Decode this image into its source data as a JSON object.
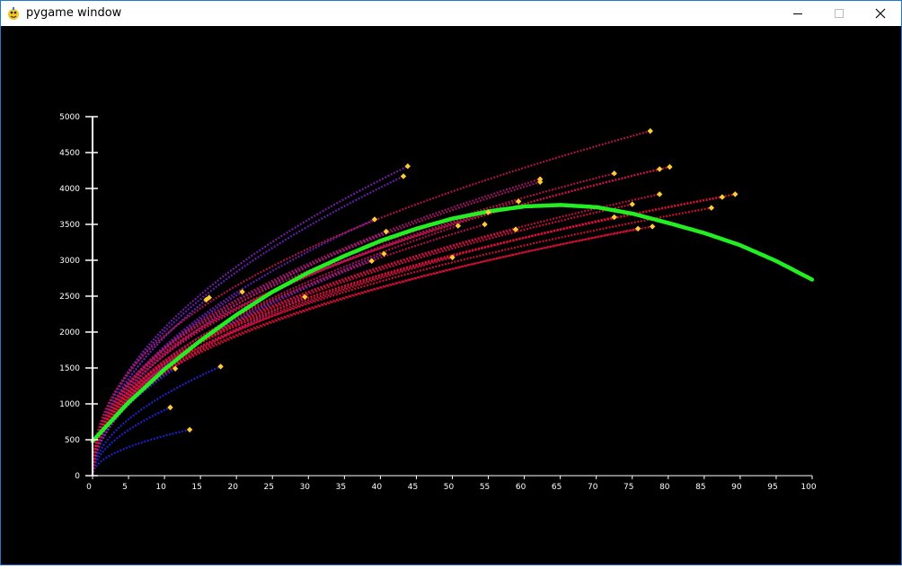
{
  "window": {
    "title": "pygame window",
    "icons": {
      "app": "pygame-snake-icon",
      "minimize": "minimize-icon",
      "maximize": "maximize-icon",
      "close": "close-icon"
    }
  },
  "colors": {
    "background": "#000000",
    "axis": "#ffffff",
    "best_fit": "#22ee22",
    "endpoint": "#ffcc33",
    "low_series": "#2222dd",
    "mid_series": "#8822aa",
    "high_series": "#dd1133"
  },
  "chart_data": {
    "type": "scatter",
    "title": "",
    "xlabel": "",
    "ylabel": "",
    "xlim": [
      0,
      100
    ],
    "ylim": [
      0,
      5000
    ],
    "x_ticks": [
      0,
      5,
      10,
      15,
      20,
      25,
      30,
      35,
      40,
      45,
      50,
      55,
      60,
      65,
      70,
      75,
      80,
      85,
      90,
      95,
      100
    ],
    "y_ticks": [
      0,
      500,
      1000,
      1500,
      2000,
      2500,
      3000,
      3500,
      4000,
      4500,
      5000
    ],
    "grid": false,
    "legend": "none",
    "best_fit": {
      "x": [
        0,
        5,
        10,
        15,
        20,
        25,
        30,
        35,
        40,
        45,
        50,
        55,
        60,
        65,
        70,
        75,
        80,
        85,
        90,
        95,
        100
      ],
      "y": [
        480,
        1020,
        1480,
        1880,
        2240,
        2560,
        2830,
        3060,
        3270,
        3440,
        3580,
        3680,
        3750,
        3770,
        3740,
        3650,
        3520,
        3380,
        3210,
        2990,
        2730
      ]
    },
    "trajectories": [
      {
        "end_x": 13.5,
        "end_y": 640,
        "power": 0.48,
        "color": "#2222dd"
      },
      {
        "end_x": 10.8,
        "end_y": 950,
        "power": 0.52,
        "color": "#2222dd"
      },
      {
        "end_x": 17.8,
        "end_y": 1520,
        "power": 0.52,
        "color": "#2a22d6"
      },
      {
        "end_x": 11.5,
        "end_y": 1490,
        "power": 0.5,
        "color": "#3a22c8"
      },
      {
        "end_x": 15.8,
        "end_y": 2450,
        "power": 0.52,
        "color": "#5a22b6"
      },
      {
        "end_x": 16.2,
        "end_y": 2480,
        "power": 0.52,
        "color": "#6622b0"
      },
      {
        "end_x": 20.8,
        "end_y": 2560,
        "power": 0.5,
        "color": "#7722a8"
      },
      {
        "end_x": 29.5,
        "end_y": 2490,
        "power": 0.52,
        "color": "#9922a0"
      },
      {
        "end_x": 38.8,
        "end_y": 2990,
        "power": 0.5,
        "color": "#8822aa"
      },
      {
        "end_x": 39.2,
        "end_y": 3570,
        "power": 0.5,
        "color": "#6622b6"
      },
      {
        "end_x": 40.5,
        "end_y": 3090,
        "power": 0.5,
        "color": "#8a22a6"
      },
      {
        "end_x": 40.8,
        "end_y": 3400,
        "power": 0.5,
        "color": "#9a2298"
      },
      {
        "end_x": 43.2,
        "end_y": 4170,
        "power": 0.5,
        "color": "#6a22bb"
      },
      {
        "end_x": 43.8,
        "end_y": 4310,
        "power": 0.5,
        "color": "#7a22b0"
      },
      {
        "end_x": 50.0,
        "end_y": 3040,
        "power": 0.45,
        "color": "#cc1144"
      },
      {
        "end_x": 50.8,
        "end_y": 3480,
        "power": 0.48,
        "color": "#bb1155"
      },
      {
        "end_x": 54.5,
        "end_y": 3500,
        "power": 0.46,
        "color": "#c0124f"
      },
      {
        "end_x": 55.0,
        "end_y": 3670,
        "power": 0.46,
        "color": "#b21560"
      },
      {
        "end_x": 58.8,
        "end_y": 3430,
        "power": 0.44,
        "color": "#cc1144"
      },
      {
        "end_x": 59.2,
        "end_y": 3820,
        "power": 0.46,
        "color": "#b81558"
      },
      {
        "end_x": 62.2,
        "end_y": 4090,
        "power": 0.46,
        "color": "#aa1868"
      },
      {
        "end_x": 62.2,
        "end_y": 4130,
        "power": 0.46,
        "color": "#a41a6c"
      },
      {
        "end_x": 72.5,
        "end_y": 3600,
        "power": 0.44,
        "color": "#d01240"
      },
      {
        "end_x": 72.5,
        "end_y": 4210,
        "power": 0.44,
        "color": "#c01450"
      },
      {
        "end_x": 75.0,
        "end_y": 3780,
        "power": 0.44,
        "color": "#d41140"
      },
      {
        "end_x": 75.8,
        "end_y": 3440,
        "power": 0.43,
        "color": "#d81138"
      },
      {
        "end_x": 77.8,
        "end_y": 3470,
        "power": 0.42,
        "color": "#dd1133"
      },
      {
        "end_x": 77.5,
        "end_y": 4800,
        "power": 0.44,
        "color": "#c01450"
      },
      {
        "end_x": 78.8,
        "end_y": 3920,
        "power": 0.44,
        "color": "#cc1244"
      },
      {
        "end_x": 78.8,
        "end_y": 4270,
        "power": 0.44,
        "color": "#c41348"
      },
      {
        "end_x": 80.2,
        "end_y": 4300,
        "power": 0.44,
        "color": "#c81346"
      },
      {
        "end_x": 86.0,
        "end_y": 3730,
        "power": 0.42,
        "color": "#dd1133"
      },
      {
        "end_x": 87.5,
        "end_y": 3880,
        "power": 0.42,
        "color": "#d81238"
      },
      {
        "end_x": 89.3,
        "end_y": 3920,
        "power": 0.42,
        "color": "#dd1133"
      }
    ]
  }
}
